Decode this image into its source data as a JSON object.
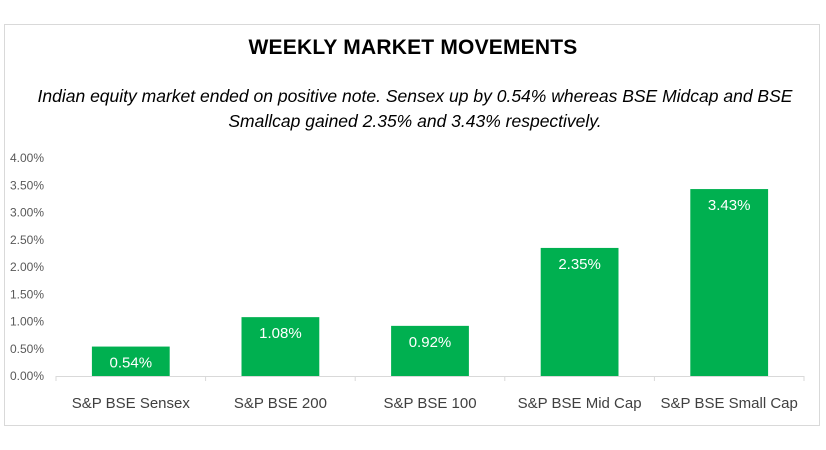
{
  "chart_data": {
    "type": "bar",
    "title": "WEEKLY MARKET MOVEMENTS",
    "subtitle": "Indian equity market ended on positive note. Sensex up by 0.54% whereas BSE Midcap and BSE Smallcap gained 2.35% and 3.43% respectively.",
    "categories": [
      "S&P BSE Sensex",
      "S&P BSE 200",
      "S&P BSE 100",
      "S&P BSE Mid Cap",
      "S&P BSE Small Cap"
    ],
    "values": [
      0.54,
      1.08,
      0.92,
      2.35,
      3.43
    ],
    "data_labels": [
      "0.54%",
      "1.08%",
      "0.92%",
      "2.35%",
      "3.43%"
    ],
    "y_ticks": [
      "0.00%",
      "0.50%",
      "1.00%",
      "1.50%",
      "2.00%",
      "2.50%",
      "3.00%",
      "3.50%",
      "4.00%"
    ],
    "ylim": [
      0,
      4
    ],
    "xlabel": "",
    "ylabel": "",
    "grid": false,
    "bar_color": "#00b050",
    "data_label_position": "inside-end"
  }
}
